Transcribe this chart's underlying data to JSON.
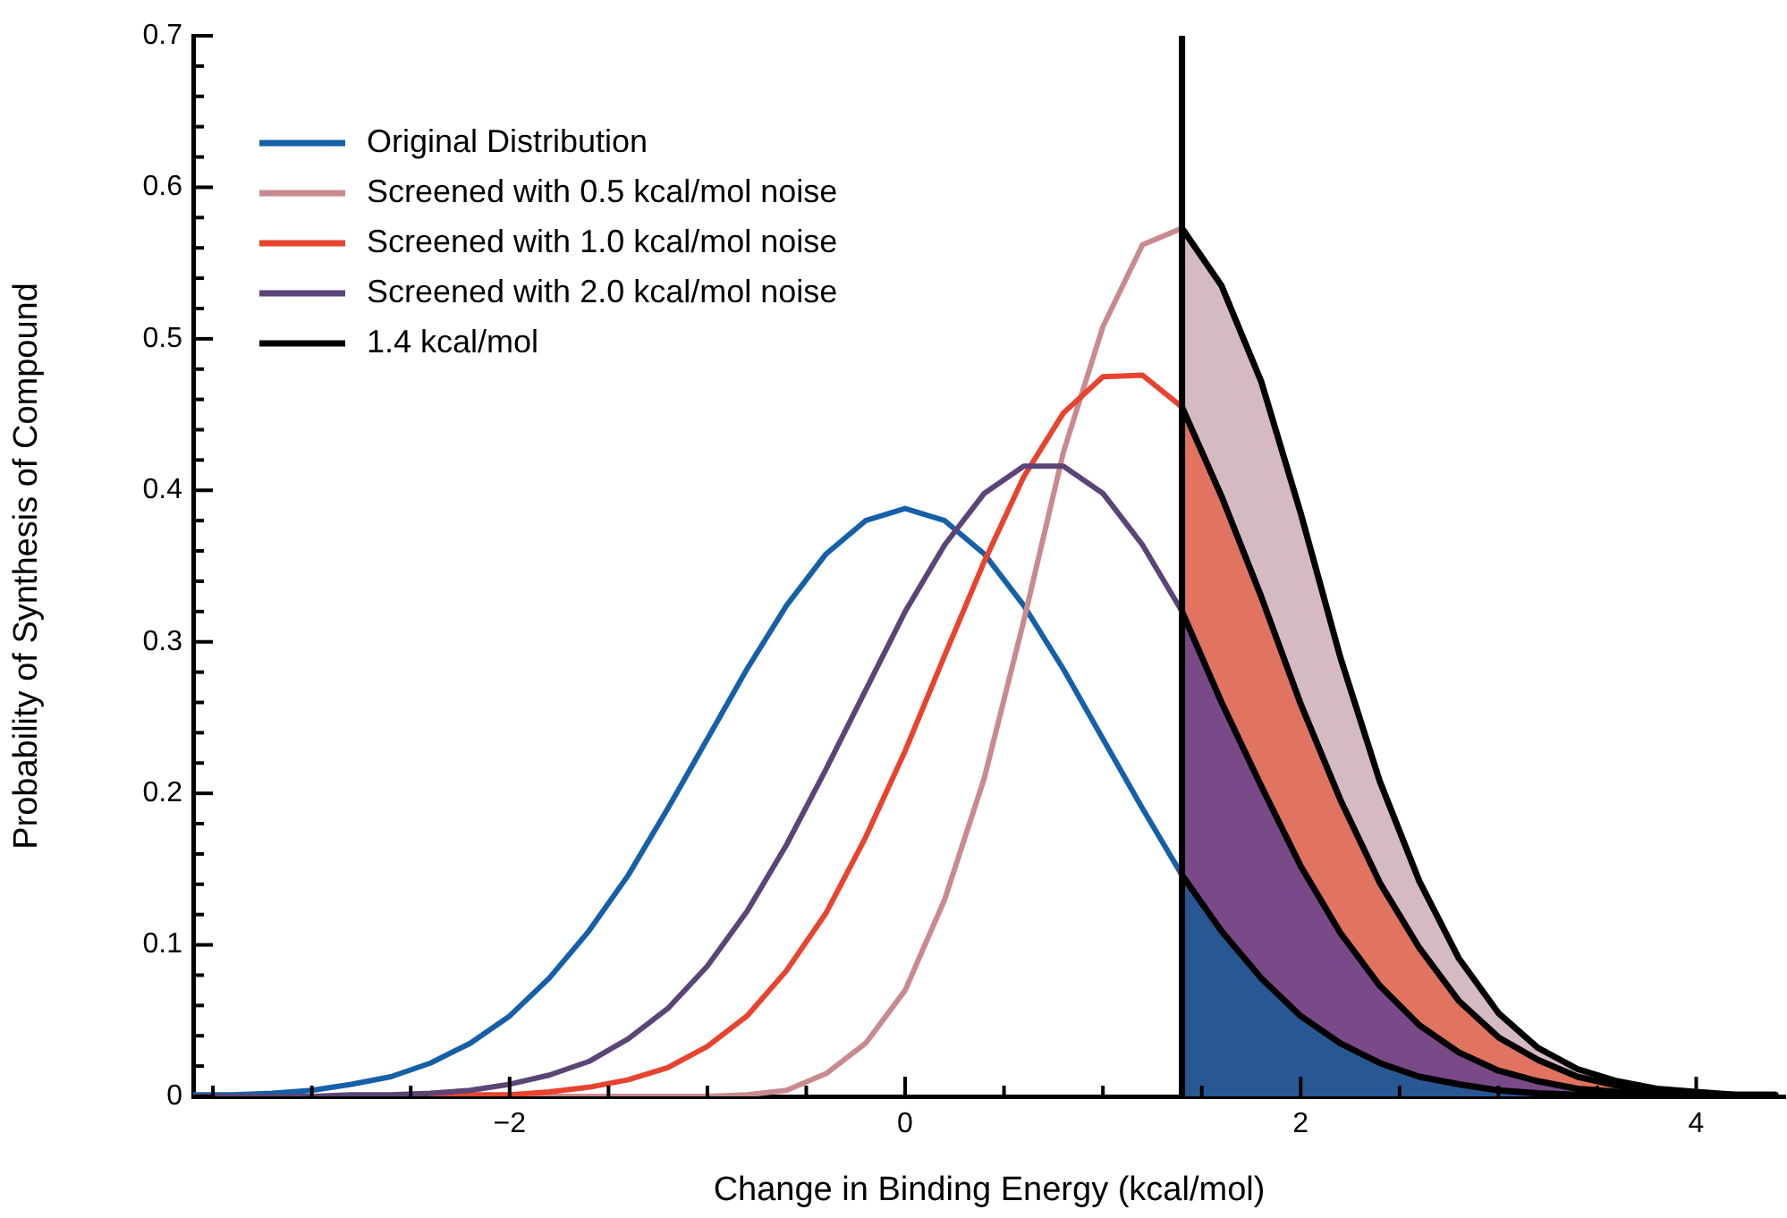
{
  "chart_data": {
    "type": "line",
    "xlabel": "Change in Binding Energy (kcal/mol)",
    "ylabel": "Probability of Synthesis of Compound",
    "xlim": [
      -3.6,
      4.45
    ],
    "ylim": [
      0,
      0.7
    ],
    "xticks": [
      {
        "value": -3.5,
        "label": null
      },
      {
        "value": -3,
        "label": null
      },
      {
        "value": -2.5,
        "label": null
      },
      {
        "value": -2,
        "label": "−2"
      },
      {
        "value": -1.5,
        "label": null
      },
      {
        "value": -1,
        "label": null
      },
      {
        "value": -0.5,
        "label": null
      },
      0,
      {
        "value": 0.5,
        "label": null
      },
      {
        "value": 1,
        "label": null
      },
      {
        "value": 1.5,
        "label": null
      },
      2,
      {
        "value": 2.5,
        "label": null
      },
      {
        "value": 3,
        "label": null
      },
      {
        "value": 3.5,
        "label": null
      },
      4
    ],
    "yticks": [
      0,
      {
        "value": 0.02,
        "label": null
      },
      {
        "value": 0.04,
        "label": null
      },
      {
        "value": 0.06,
        "label": null
      },
      {
        "value": 0.08,
        "label": null
      },
      0.1,
      {
        "value": 0.12,
        "label": null
      },
      {
        "value": 0.14,
        "label": null
      },
      {
        "value": 0.16,
        "label": null
      },
      {
        "value": 0.18,
        "label": null
      },
      0.2,
      {
        "value": 0.22,
        "label": null
      },
      {
        "value": 0.24,
        "label": null
      },
      {
        "value": 0.26,
        "label": null
      },
      {
        "value": 0.28,
        "label": null
      },
      0.3,
      {
        "value": 0.32,
        "label": null
      },
      {
        "value": 0.34,
        "label": null
      },
      {
        "value": 0.36,
        "label": null
      },
      {
        "value": 0.38,
        "label": null
      },
      0.4,
      {
        "value": 0.42,
        "label": null
      },
      {
        "value": 0.44,
        "label": null
      },
      {
        "value": 0.46,
        "label": null
      },
      {
        "value": 0.48,
        "label": null
      },
      0.5,
      {
        "value": 0.52,
        "label": null
      },
      {
        "value": 0.54,
        "label": null
      },
      {
        "value": 0.56,
        "label": null
      },
      {
        "value": 0.58,
        "label": null
      },
      0.6,
      {
        "value": 0.62,
        "label": null
      },
      {
        "value": 0.64,
        "label": null
      },
      {
        "value": 0.66,
        "label": null
      },
      {
        "value": 0.68,
        "label": null
      },
      0.7
    ],
    "x": [
      -3.6,
      -3.4,
      -3.2,
      -3.0,
      -2.8,
      -2.6,
      -2.4,
      -2.2,
      -2.0,
      -1.8,
      -1.6,
      -1.4,
      -1.2,
      -1.0,
      -0.8,
      -0.6,
      -0.4,
      -0.2,
      0,
      0.2,
      0.4,
      0.6,
      0.8,
      1.0,
      1.2,
      1.4
    ],
    "legend": "top left",
    "marker": "none",
    "line_style": "solid",
    "series": [
      {
        "name": "Original Distribution",
        "color": "#1560a8",
        "values": [
          0.001,
          0.001,
          0.002,
          0.004,
          0.008,
          0.013,
          0.022,
          0.035,
          0.053,
          0.078,
          0.109,
          0.146,
          0.19,
          0.236,
          0.282,
          0.324,
          0.358,
          0.38,
          0.388,
          0.38,
          0.358,
          0.324,
          0.282,
          0.236,
          0.19,
          0.146
        ]
      },
      {
        "name": "Screened with 0.5 kcal/mol noise",
        "color": "#c98a8f",
        "values": [
          null,
          null,
          null,
          null,
          null,
          null,
          null,
          0,
          0,
          0,
          0,
          0,
          0,
          0,
          0.001,
          0.004,
          0.015,
          0.035,
          0.07,
          0.13,
          0.21,
          0.314,
          0.425,
          0.508,
          0.562,
          0.573
        ]
      },
      {
        "name": "Screened with 1.0 kcal/mol noise",
        "color": "#e8432f",
        "values": [
          null,
          null,
          null,
          null,
          null,
          null,
          0,
          0.001,
          0.001,
          0.003,
          0.006,
          0.011,
          0.019,
          0.033,
          0.053,
          0.083,
          0.121,
          0.171,
          0.228,
          0.291,
          0.353,
          0.409,
          0.451,
          0.475,
          0.476,
          0.455
        ]
      },
      {
        "name": "Screened with 2.0 kcal/mol noise",
        "color": "#5b4577",
        "values": [
          0,
          0,
          0,
          0,
          0.001,
          0.001,
          0.002,
          0.004,
          0.008,
          0.014,
          0.023,
          0.038,
          0.058,
          0.086,
          0.122,
          0.166,
          0.216,
          0.268,
          0.32,
          0.364,
          0.398,
          0.416,
          0.416,
          0.398,
          0.364,
          0.32
        ]
      },
      {
        "name": "1.4 kcal/mol",
        "color": "#000000",
        "x": [
          1.4,
          1.4
        ],
        "values": [
          0,
          0.7
        ]
      },
      {
        "type": "area",
        "color": "#d5bac1",
        "x": [
          1.4,
          1.6,
          1.8,
          2.0,
          2.2,
          2.4,
          2.6,
          2.8,
          3.0,
          3.2,
          3.4,
          3.6,
          3.8,
          4.0,
          4.2,
          4.4
        ],
        "values": [
          0.573,
          0.535,
          0.472,
          0.385,
          0.29,
          0.208,
          0.142,
          0.091,
          0.055,
          0.032,
          0.018,
          0.01,
          0.005,
          0.003,
          0.001,
          0.001
        ]
      },
      {
        "type": "area",
        "color": "#e07460",
        "x": [
          1.4,
          1.6,
          1.8,
          2.0,
          2.2,
          2.4,
          2.6,
          2.8,
          3.0,
          3.2,
          3.4,
          3.6,
          3.8,
          4.0,
          4.2,
          4.4
        ],
        "values": [
          0.455,
          0.396,
          0.33,
          0.259,
          0.196,
          0.141,
          0.098,
          0.063,
          0.039,
          0.024,
          0.013,
          0.007,
          0.004,
          0.002,
          0.001,
          0.001
        ]
      },
      {
        "type": "area",
        "color": "#7a4a88",
        "x": [
          1.4,
          1.6,
          1.8,
          2.0,
          2.2,
          2.4,
          2.6,
          2.8,
          3.0,
          3.2,
          3.4,
          3.6,
          3.8,
          4.0,
          4.2,
          4.4
        ],
        "values": [
          0.32,
          0.26,
          0.205,
          0.152,
          0.108,
          0.073,
          0.047,
          0.029,
          0.017,
          0.01,
          0.005,
          0.003,
          0.001,
          0.001,
          0,
          0
        ]
      },
      {
        "type": "area",
        "color": "#285893",
        "x": [
          1.4,
          1.6,
          1.8,
          2.0,
          2.2,
          2.4,
          2.6,
          2.8,
          3.0,
          3.2,
          3.4,
          3.6,
          3.8,
          4.0,
          4.2,
          4.4
        ],
        "values": [
          0.146,
          0.109,
          0.078,
          0.053,
          0.035,
          0.022,
          0.013,
          0.008,
          0.004,
          0.002,
          0.001,
          0.001,
          0,
          0,
          0,
          0
        ]
      }
    ]
  }
}
